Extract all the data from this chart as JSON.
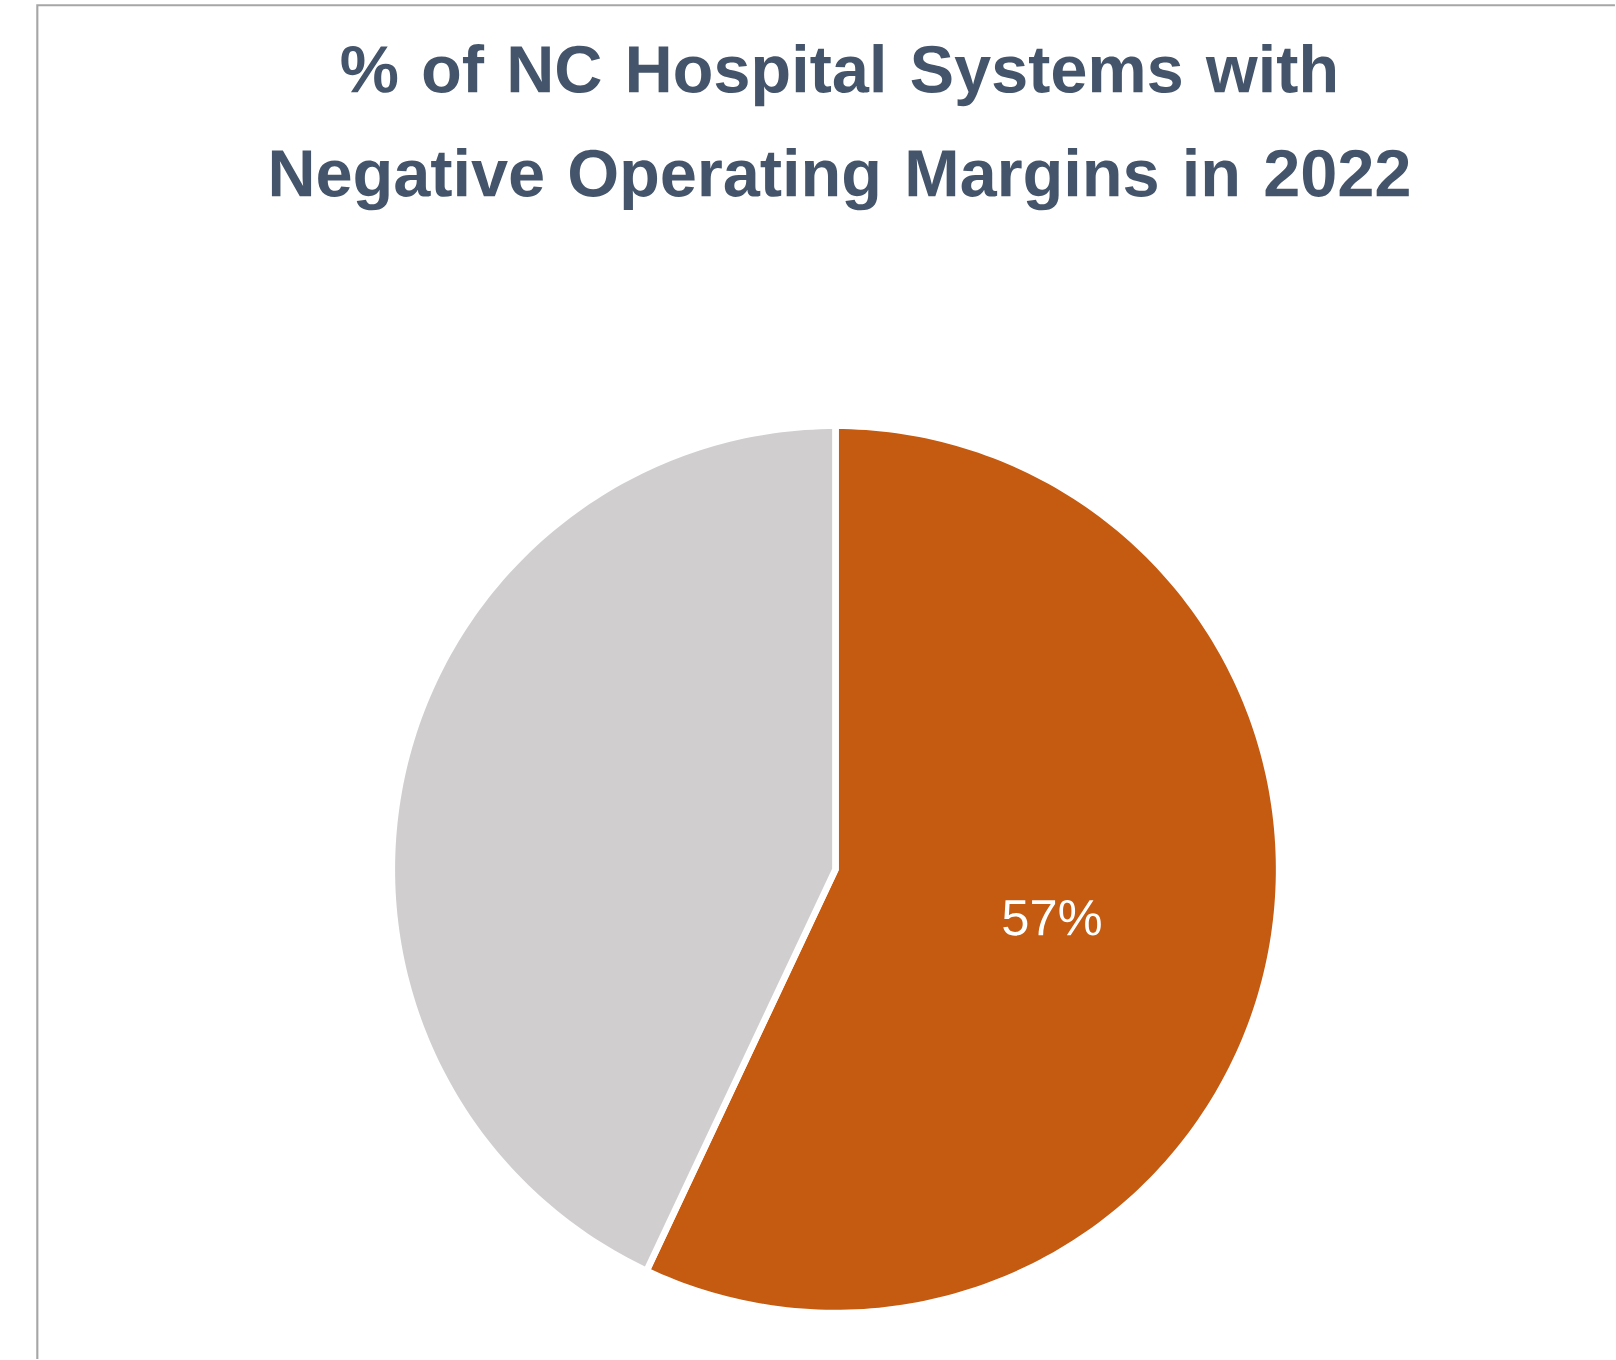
{
  "chart_data": {
    "type": "pie",
    "title": "% of NC Hospital Systems with Negative Operating Margins in 2022",
    "categories": [
      null,
      null
    ],
    "values": [
      57,
      43
    ],
    "colors": [
      "#c55a11",
      "#d0cece"
    ],
    "value_labels": [
      "57%",
      null
    ]
  }
}
